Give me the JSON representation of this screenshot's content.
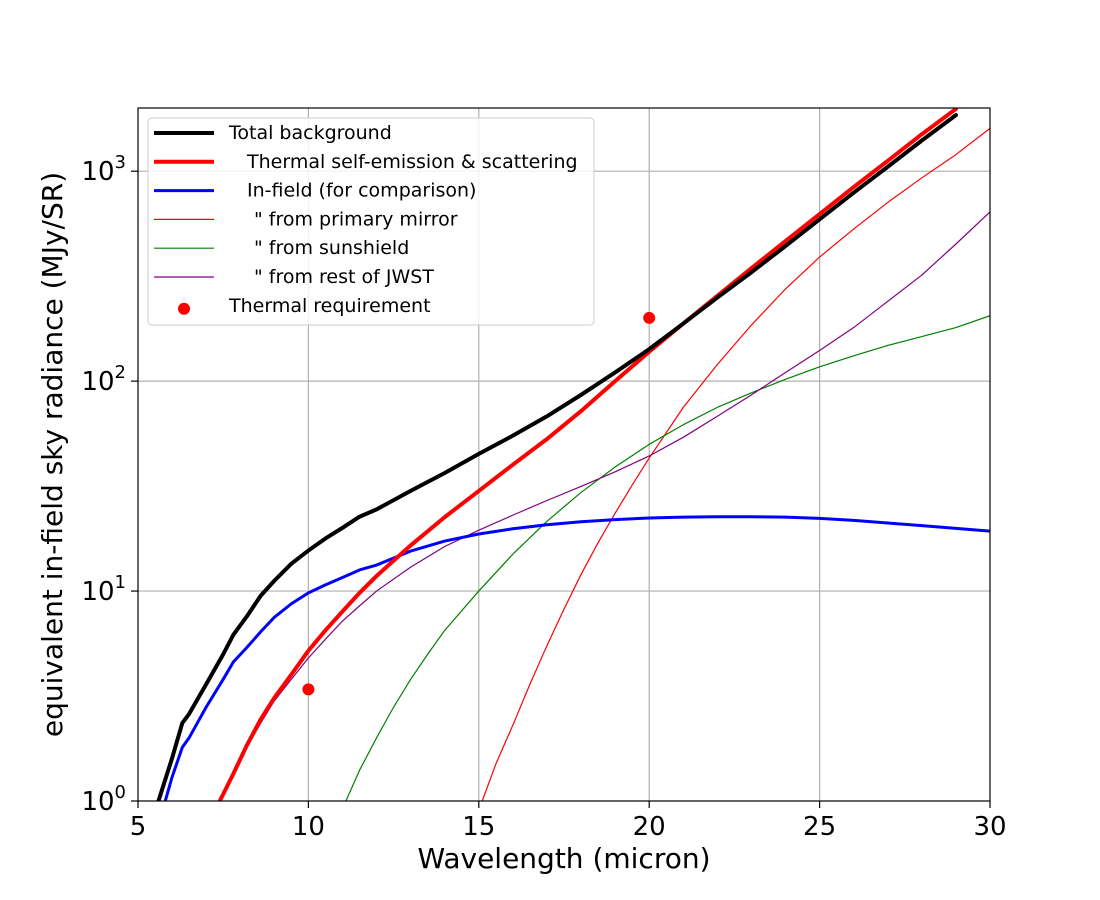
{
  "chart_data": {
    "type": "line",
    "title": "",
    "xlabel": "Wavelength (micron)",
    "ylabel": "equivalent in-field sky radiance (MJy/SR)",
    "xlim": [
      5,
      30
    ],
    "ylim": [
      1,
      2000
    ],
    "yscale": "log",
    "grid": true,
    "legend_position": "top-left",
    "x_ticks": [
      5,
      10,
      15,
      20,
      25,
      30
    ],
    "y_ticks": [
      {
        "value": 1,
        "mantissa": "10",
        "exponent": "0"
      },
      {
        "value": 10,
        "mantissa": "10",
        "exponent": "1"
      },
      {
        "value": 100,
        "mantissa": "10",
        "exponent": "2"
      },
      {
        "value": 1000,
        "mantissa": "10",
        "exponent": "3"
      }
    ],
    "series": [
      {
        "name": "Total background",
        "color": "#000000",
        "width": 4,
        "x": [
          5.6,
          6.0,
          6.3,
          6.5,
          7.0,
          7.5,
          7.8,
          8.2,
          8.6,
          9.0,
          9.5,
          10.0,
          10.5,
          11.0,
          11.5,
          12.0,
          13.0,
          14.0,
          15.0,
          16.0,
          17.0,
          18.0,
          19.0,
          20.0,
          21.0,
          22.0,
          23.0,
          24.0,
          25.0,
          26.0,
          27.0,
          28.0,
          29.0
        ],
        "y": [
          1.0,
          1.6,
          2.35,
          2.6,
          3.6,
          5.0,
          6.2,
          7.6,
          9.5,
          11.2,
          13.5,
          15.6,
          17.8,
          20.0,
          22.6,
          24.5,
          30.0,
          36.5,
          45.0,
          55.0,
          68.0,
          86.0,
          110.0,
          142.0,
          188.0,
          250.0,
          330.0,
          440.0,
          590.0,
          790.0,
          1050.0,
          1400.0,
          1850.0
        ]
      },
      {
        "name": "Thermal self-emission & scattering",
        "color": "#ff0000",
        "width": 4,
        "x": [
          7.4,
          7.8,
          8.2,
          8.6,
          9.0,
          9.5,
          10.0,
          10.5,
          11.0,
          11.5,
          12.0,
          13.0,
          14.0,
          15.0,
          16.0,
          17.0,
          18.0,
          19.0,
          20.0,
          21.0,
          22.0,
          23.0,
          24.0,
          25.0,
          26.0,
          27.0,
          28.0,
          29.0
        ],
        "y": [
          1.0,
          1.35,
          1.85,
          2.45,
          3.1,
          4.0,
          5.2,
          6.5,
          8.0,
          9.8,
          11.8,
          16.5,
          22.5,
          30.0,
          40.0,
          53.0,
          72.0,
          100.0,
          138.0,
          188.0,
          255.0,
          345.0,
          465.0,
          625.0,
          840.0,
          1120.0,
          1500.0,
          1980.0
        ]
      },
      {
        "name": "In-field (for comparison)",
        "color": "#0000ff",
        "width": 3,
        "x": [
          5.8,
          6.0,
          6.3,
          6.5,
          7.0,
          7.5,
          7.8,
          8.2,
          8.6,
          9.0,
          9.5,
          10.0,
          10.5,
          11.0,
          11.5,
          12.0,
          13.0,
          14.0,
          15.0,
          16.0,
          17.0,
          18.0,
          19.0,
          20.0,
          21.0,
          22.0,
          23.0,
          24.0,
          25.0,
          26.0,
          27.0,
          28.0,
          29.0,
          30.0
        ],
        "y": [
          1.0,
          1.3,
          1.8,
          2.0,
          2.8,
          3.8,
          4.6,
          5.4,
          6.4,
          7.5,
          8.7,
          9.8,
          10.7,
          11.6,
          12.6,
          13.3,
          15.5,
          17.3,
          18.7,
          19.8,
          20.7,
          21.4,
          21.9,
          22.3,
          22.5,
          22.6,
          22.6,
          22.5,
          22.2,
          21.7,
          21.1,
          20.5,
          19.9,
          19.3
        ]
      },
      {
        "name": "\" from primary mirror",
        "color": "#ff0000",
        "width": 1.2,
        "x": [
          15.1,
          15.5,
          16.0,
          16.5,
          17.0,
          17.5,
          18.0,
          18.5,
          19.0,
          19.5,
          20.0,
          21.0,
          22.0,
          23.0,
          24.0,
          25.0,
          26.0,
          27.0,
          28.0,
          29.0,
          30.0
        ],
        "y": [
          1.0,
          1.5,
          2.3,
          3.6,
          5.5,
          8.2,
          12.0,
          17.0,
          23.5,
          32.0,
          43.0,
          75.0,
          120.0,
          185.0,
          275.0,
          390.0,
          530.0,
          710.0,
          930.0,
          1200.0,
          1600.0
        ]
      },
      {
        "name": "\" from sunshield",
        "color": "#008000",
        "width": 1.2,
        "x": [
          11.1,
          11.5,
          12.0,
          12.5,
          13.0,
          13.5,
          14.0,
          15.0,
          16.0,
          17.0,
          18.0,
          19.0,
          20.0,
          21.0,
          22.0,
          23.0,
          24.0,
          25.0,
          26.0,
          27.0,
          28.0,
          29.0,
          30.0
        ],
        "y": [
          1.0,
          1.4,
          2.0,
          2.8,
          3.8,
          5.0,
          6.5,
          10.0,
          15.0,
          21.5,
          29.5,
          39.0,
          50.0,
          62.0,
          75.0,
          88.0,
          102.0,
          117.0,
          132.0,
          148.0,
          163.0,
          180.0,
          205.0
        ]
      },
      {
        "name": "\" from rest of JWST",
        "color": "#800080",
        "width": 1.2,
        "x": [
          7.4,
          7.8,
          8.2,
          8.6,
          9.0,
          9.5,
          10.0,
          10.5,
          11.0,
          11.5,
          12.0,
          13.0,
          14.0,
          15.0,
          16.0,
          17.0,
          18.0,
          19.0,
          20.0,
          21.0,
          22.0,
          23.0,
          24.0,
          25.0,
          26.0,
          27.0,
          28.0,
          29.0,
          30.0
        ],
        "y": [
          1.0,
          1.35,
          1.8,
          2.35,
          3.0,
          3.8,
          4.8,
          5.9,
          7.2,
          8.5,
          10.0,
          13.0,
          16.3,
          19.5,
          23.0,
          27.0,
          31.5,
          37.0,
          44.0,
          54.0,
          68.0,
          86.0,
          110.0,
          140.0,
          180.0,
          240.0,
          320.0,
          450.0,
          640.0
        ]
      },
      {
        "name": "Thermal requirement",
        "color": "#ff0000",
        "marker": "circle",
        "x": [
          10,
          20
        ],
        "y": [
          3.4,
          200
        ]
      }
    ]
  }
}
